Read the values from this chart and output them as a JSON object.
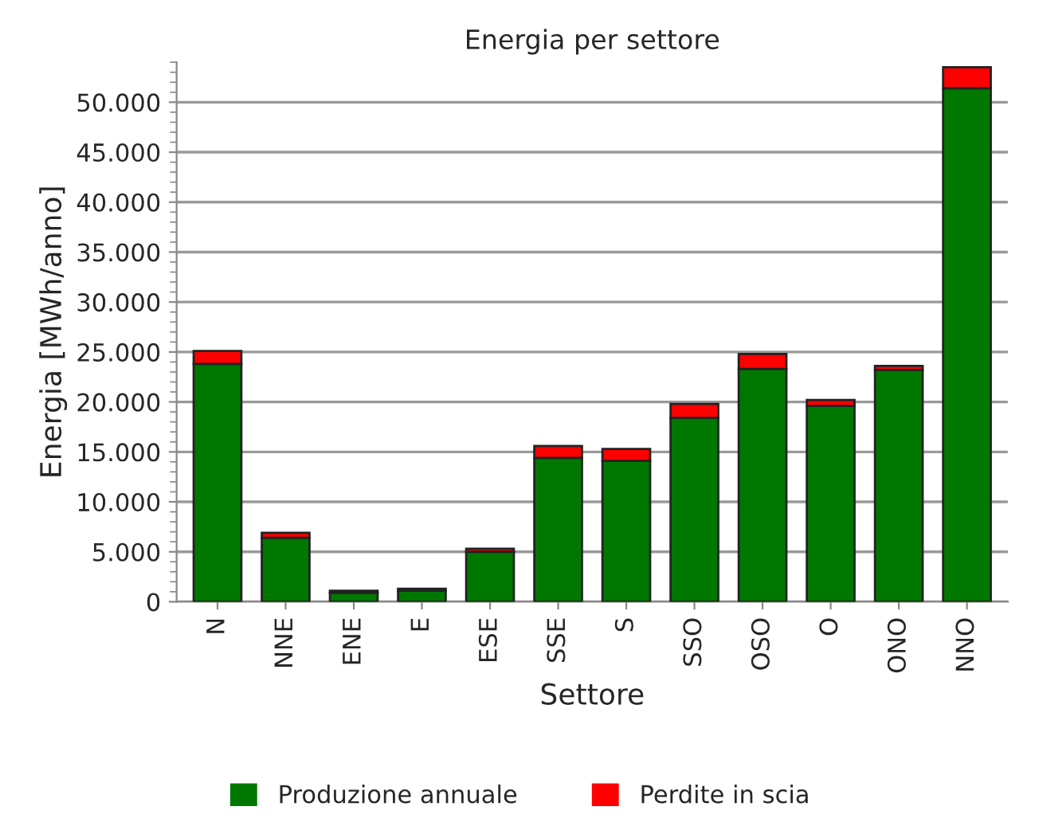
{
  "chart_data": {
    "type": "bar",
    "title": "Energia per settore",
    "xlabel": "Settore",
    "ylabel": "Energia [MWh/anno]",
    "stacked": true,
    "grid": "y",
    "legend": "bottom",
    "categories": [
      "N",
      "NNE",
      "ENE",
      "E",
      "ESE",
      "SSE",
      "S",
      "SSO",
      "OSO",
      "O",
      "ONO",
      "NNO"
    ],
    "series": [
      {
        "name": "Produzione annuale",
        "color": "#007800",
        "values": [
          23800,
          6400,
          900,
          1100,
          5000,
          14400,
          14100,
          18400,
          23300,
          19600,
          23200,
          51400
        ]
      },
      {
        "name": "Perdite in scia",
        "color": "#ff0000",
        "values": [
          1300,
          500,
          200,
          200,
          300,
          1200,
          1200,
          1400,
          1500,
          600,
          400,
          2100
        ]
      }
    ],
    "ylim": [
      0,
      54000
    ],
    "yticks": [
      {
        "value": 0,
        "label": "0"
      },
      {
        "value": 5000,
        "label": "5.000"
      },
      {
        "value": 10000,
        "label": "10.000"
      },
      {
        "value": 15000,
        "label": "15.000"
      },
      {
        "value": 20000,
        "label": "20.000"
      },
      {
        "value": 25000,
        "label": "25.000"
      },
      {
        "value": 30000,
        "label": "30.000"
      },
      {
        "value": 35000,
        "label": "35.000"
      },
      {
        "value": 40000,
        "label": "40.000"
      },
      {
        "value": 45000,
        "label": "45.000"
      },
      {
        "value": 50000,
        "label": "50.000"
      }
    ]
  }
}
